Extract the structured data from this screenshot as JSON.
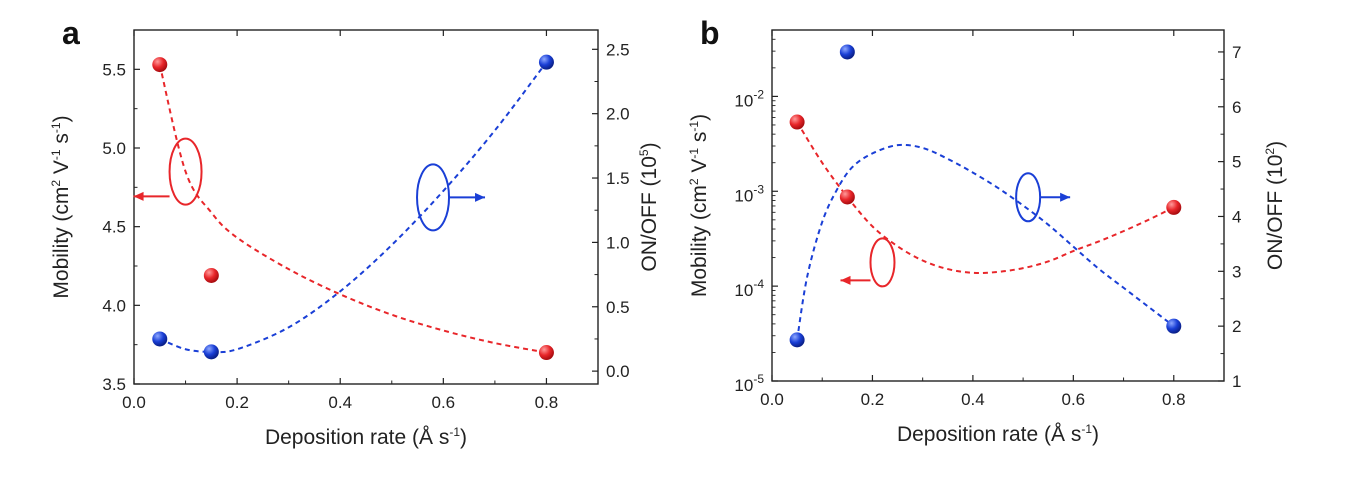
{
  "chart_data": [
    {
      "type": "scatter",
      "panel_label": "a",
      "xlabel": "Deposition rate (Å s-1)",
      "xlabel_parts": [
        "Deposition rate (Å s",
        "-1",
        ")"
      ],
      "xlim": [
        0.0,
        0.9
      ],
      "xticks": [
        "0.0",
        "0.2",
        "0.4",
        "0.6",
        "0.8"
      ],
      "left_axis": {
        "label": "Mobility (cm2 V-1 s-1)",
        "label_parts": [
          "Mobility (cm",
          "2",
          " V",
          "-1",
          " s",
          "-1",
          ")"
        ],
        "scale": "linear",
        "ylim": [
          3.5,
          5.75
        ],
        "ticks": [
          "3.5",
          "4.0",
          "4.5",
          "5.0",
          "5.5"
        ],
        "color": "#e8262a"
      },
      "right_axis": {
        "label": "ON/OFF (105)",
        "label_parts": [
          "ON/OFF (10",
          "5",
          ")"
        ],
        "scale": "linear",
        "ylim": [
          -0.1,
          2.65
        ],
        "ticks": [
          "0.0",
          "0.5",
          "1.0",
          "1.5",
          "2.0",
          "2.5"
        ],
        "color": "#1a3fd6"
      },
      "series": [
        {
          "name": "Mobility",
          "axis": "left",
          "color": "#e8262a",
          "x": [
            0.05,
            0.15,
            0.8
          ],
          "y": [
            5.53,
            4.19,
            3.7
          ],
          "fit": {
            "x": [
              0.05,
              0.1,
              0.15,
              0.2,
              0.3,
              0.4,
              0.5,
              0.6,
              0.7,
              0.8
            ],
            "y": [
              5.53,
              4.85,
              4.59,
              4.43,
              4.23,
              4.07,
              3.94,
              3.84,
              3.76,
              3.7
            ]
          }
        },
        {
          "name": "ON/OFF",
          "axis": "right",
          "color": "#1a3fd6",
          "x": [
            0.05,
            0.15,
            0.8
          ],
          "y": [
            0.25,
            0.15,
            2.4
          ],
          "fit": {
            "x": [
              0.05,
              0.1,
              0.15,
              0.2,
              0.3,
              0.4,
              0.5,
              0.6,
              0.7,
              0.8
            ],
            "y": [
              0.25,
              0.17,
              0.15,
              0.17,
              0.34,
              0.62,
              0.98,
              1.4,
              1.87,
              2.4
            ]
          }
        }
      ],
      "annotations": [
        {
          "type": "ellipse-arrow",
          "series": "Mobility",
          "direction": "left",
          "at": [
            0.1,
            4.85
          ]
        },
        {
          "type": "ellipse-arrow",
          "series": "ON/OFF",
          "direction": "right",
          "at": [
            0.58,
            1.35
          ]
        }
      ]
    },
    {
      "type": "scatter",
      "panel_label": "b",
      "xlabel": "Deposition rate (Å s-1)",
      "xlabel_parts": [
        "Deposition rate (Å s",
        "-1",
        ")"
      ],
      "xlim": [
        0.0,
        0.9
      ],
      "xticks": [
        "0.0",
        "0.2",
        "0.4",
        "0.6",
        "0.8"
      ],
      "left_axis": {
        "label": "Mobility (cm2 V-1 s-1)",
        "label_parts": [
          "Mobility (cm",
          "2",
          " V",
          "-1",
          " s",
          "-1",
          ")"
        ],
        "scale": "log",
        "ylim_exp": [
          -5,
          -1.3
        ],
        "ticks": [
          {
            "base": "10",
            "exp": "-5",
            "value_exp": -5
          },
          {
            "base": "10",
            "exp": "-4",
            "value_exp": -4
          },
          {
            "base": "10",
            "exp": "-3",
            "value_exp": -3
          },
          {
            "base": "10",
            "exp": "-2",
            "value_exp": -2
          }
        ],
        "color": "#e8262a"
      },
      "right_axis": {
        "label": "ON/OFF (102)",
        "label_parts": [
          "ON/OFF (10",
          "2",
          ")"
        ],
        "scale": "linear",
        "ylim": [
          1.0,
          7.4
        ],
        "ticks": [
          "1",
          "2",
          "3",
          "4",
          "5",
          "6",
          "7"
        ],
        "color": "#1a3fd6"
      },
      "series": [
        {
          "name": "Mobility",
          "axis": "left",
          "color": "#e8262a",
          "x": [
            0.05,
            0.15,
            0.8
          ],
          "y_exp": [
            -2.27,
            -3.06,
            -3.17
          ],
          "fit": {
            "x": [
              0.05,
              0.1,
              0.15,
              0.2,
              0.25,
              0.3,
              0.35,
              0.4,
              0.45,
              0.5,
              0.55,
              0.6,
              0.65,
              0.7,
              0.75,
              0.8
            ],
            "y_exp": [
              -2.27,
              -2.7,
              -3.06,
              -3.37,
              -3.58,
              -3.73,
              -3.82,
              -3.86,
              -3.85,
              -3.81,
              -3.74,
              -3.63,
              -3.53,
              -3.42,
              -3.3,
              -3.17
            ]
          }
        },
        {
          "name": "ON/OFF",
          "axis": "right",
          "color": "#1a3fd6",
          "x": [
            0.05,
            0.15,
            0.8
          ],
          "y": [
            1.75,
            7.0,
            2.0
          ],
          "fit": {
            "x": [
              0.05,
              0.07,
              0.1,
              0.13,
              0.16,
              0.2,
              0.25,
              0.3,
              0.35,
              0.4,
              0.45,
              0.5,
              0.55,
              0.6,
              0.65,
              0.7,
              0.75,
              0.8
            ],
            "y": [
              1.75,
              2.9,
              3.9,
              4.5,
              4.9,
              5.15,
              5.3,
              5.25,
              5.05,
              4.8,
              4.52,
              4.2,
              3.85,
              3.45,
              3.05,
              2.7,
              2.35,
              2.0
            ]
          }
        }
      ],
      "annotations": [
        {
          "type": "ellipse-arrow",
          "series": "Mobility",
          "direction": "left",
          "at": [
            0.22,
            -3.75
          ]
        },
        {
          "type": "ellipse-arrow",
          "series": "ON/OFF",
          "direction": "right",
          "at": [
            0.51,
            4.35
          ]
        }
      ]
    }
  ]
}
